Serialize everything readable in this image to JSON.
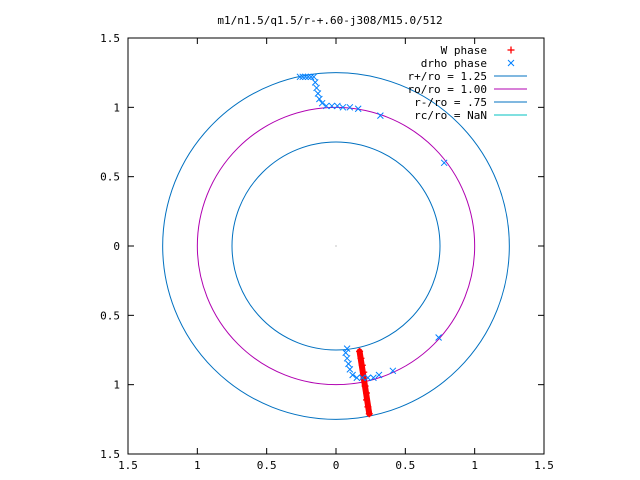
{
  "chart_data": {
    "type": "scatter",
    "title": "m1/n1.5/q1.5/r-+.60-j308/M15.0/512",
    "xlabel": "",
    "ylabel": "",
    "xlim": [
      -1.5,
      1.5
    ],
    "ylim": [
      -1.5,
      1.5
    ],
    "grid": false,
    "legend_position": "top-right",
    "x_ticks": [
      -1.5,
      -1,
      -0.5,
      0,
      0.5,
      1,
      1.5
    ],
    "x_tick_labels": [
      "1.5",
      "1",
      "0.5",
      "0",
      "0.5",
      "1",
      "1.5"
    ],
    "y_ticks": [
      1.5,
      1,
      0.5,
      0,
      -0.5,
      -1,
      -1.5
    ],
    "y_tick_labels": [
      "1.5",
      "1",
      "0.5",
      "0",
      "0.5",
      "1",
      "1.5"
    ],
    "series": [
      {
        "name": "W phase",
        "marker": "plus",
        "color": "#ff0000",
        "points": [
          [
            0.17,
            -0.76
          ],
          [
            0.18,
            -0.81
          ],
          [
            0.19,
            -0.86
          ],
          [
            0.2,
            -0.91
          ],
          [
            0.2,
            -0.96
          ],
          [
            0.21,
            -1.01
          ],
          [
            0.22,
            -1.06
          ],
          [
            0.22,
            -1.11
          ],
          [
            0.23,
            -1.16
          ],
          [
            0.24,
            -1.21
          ]
        ]
      },
      {
        "name": "drho phase",
        "marker": "cross",
        "color": "#0080ff",
        "points": [
          [
            -0.26,
            1.22
          ],
          [
            -0.24,
            1.22
          ],
          [
            -0.22,
            1.22
          ],
          [
            -0.2,
            1.22
          ],
          [
            -0.18,
            1.22
          ],
          [
            -0.16,
            1.22
          ],
          [
            -0.15,
            1.18
          ],
          [
            -0.14,
            1.14
          ],
          [
            -0.13,
            1.1
          ],
          [
            -0.12,
            1.06
          ],
          [
            -0.1,
            1.03
          ],
          [
            -0.07,
            1.01
          ],
          [
            -0.03,
            1.01
          ],
          [
            0.01,
            1.01
          ],
          [
            0.05,
            1.0
          ],
          [
            0.1,
            1.0
          ],
          [
            0.16,
            0.99
          ],
          [
            0.32,
            0.94
          ],
          [
            0.78,
            0.6
          ],
          [
            0.74,
            -0.66
          ],
          [
            0.41,
            -0.9
          ],
          [
            0.31,
            -0.93
          ],
          [
            0.27,
            -0.95
          ],
          [
            0.23,
            -0.95
          ],
          [
            0.19,
            -0.95
          ],
          [
            0.15,
            -0.95
          ],
          [
            0.12,
            -0.93
          ],
          [
            0.1,
            -0.89
          ],
          [
            0.09,
            -0.85
          ],
          [
            0.08,
            -0.81
          ],
          [
            0.07,
            -0.77
          ],
          [
            0.08,
            -0.74
          ]
        ]
      },
      {
        "name": "r+/ro = 1.25",
        "type": "circle",
        "radius": 1.25,
        "color": "#0070c0"
      },
      {
        "name": "ro/ro = 1.00",
        "type": "circle",
        "radius": 1.0,
        "color": "#b000b0"
      },
      {
        "name": "r-/ro = .75",
        "type": "circle",
        "radius": 0.75,
        "color": "#0070c0"
      },
      {
        "name": "rc/ro = NaN",
        "type": "circle",
        "radius": null,
        "color": "#00c0c0"
      }
    ]
  }
}
